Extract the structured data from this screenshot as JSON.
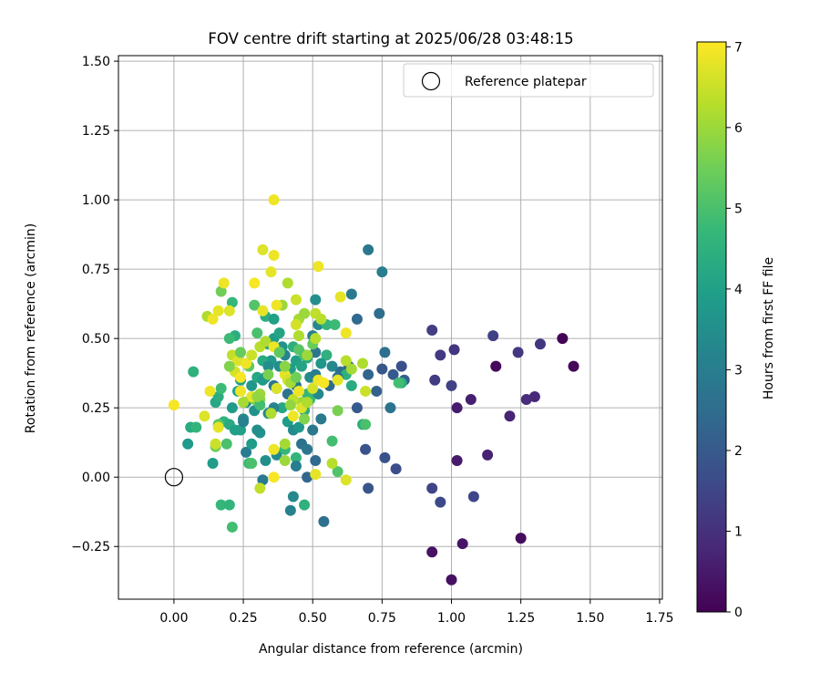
{
  "chart_data": {
    "type": "scatter",
    "title": "FOV centre drift starting at 2025/06/28 03:48:15",
    "xlabel": "Angular distance from reference (arcmin)",
    "ylabel": "Rotation from reference (arcmin)",
    "xlim": [
      -0.2,
      1.76
    ],
    "ylim": [
      -0.44,
      1.52
    ],
    "xticks": [
      "0.00",
      "0.25",
      "0.50",
      "0.75",
      "1.00",
      "1.25",
      "1.50",
      "1.75"
    ],
    "xtick_values": [
      0,
      0.25,
      0.5,
      0.75,
      1.0,
      1.25,
      1.5,
      1.75
    ],
    "yticks": [
      "−0.25",
      "0.00",
      "0.25",
      "0.50",
      "0.75",
      "1.00",
      "1.25",
      "1.50"
    ],
    "ytick_values": [
      -0.25,
      0,
      0.25,
      0.5,
      0.75,
      1.0,
      1.25,
      1.5
    ],
    "grid": true,
    "legend": {
      "position": "upper right",
      "entries": [
        {
          "label": "Reference platepar",
          "marker": "open-circle",
          "color": "#000000"
        }
      ]
    },
    "reference_point": {
      "x": 0.0,
      "y": 0.0
    },
    "colorbar": {
      "label": "Hours from first FF file",
      "min": 0,
      "max": 7.06,
      "ticks": [
        "0",
        "1",
        "2",
        "3",
        "4",
        "5",
        "6",
        "7"
      ],
      "tick_values": [
        0,
        1,
        2,
        3,
        4,
        5,
        6,
        7
      ],
      "colormap": "viridis"
    },
    "colormap_stops": [
      "#440154",
      "#482878",
      "#3e4989",
      "#31688e",
      "#26828e",
      "#1f9e89",
      "#35b779",
      "#6ece58",
      "#b5de2b",
      "#fde725"
    ],
    "points": [
      {
        "x": 1.4,
        "y": 0.5,
        "t": 0.05
      },
      {
        "x": 1.44,
        "y": 0.4,
        "t": 0.1
      },
      {
        "x": 1.25,
        "y": -0.22,
        "t": 0.2
      },
      {
        "x": 1.16,
        "y": 0.4,
        "t": 0.15
      },
      {
        "x": 1.0,
        "y": -0.37,
        "t": 0.3
      },
      {
        "x": 0.93,
        "y": -0.27,
        "t": 0.35
      },
      {
        "x": 1.04,
        "y": -0.24,
        "t": 0.4
      },
      {
        "x": 1.02,
        "y": 0.06,
        "t": 0.5
      },
      {
        "x": 1.02,
        "y": 0.25,
        "t": 0.55
      },
      {
        "x": 1.07,
        "y": 0.28,
        "t": 0.6
      },
      {
        "x": 1.13,
        "y": 0.08,
        "t": 0.65
      },
      {
        "x": 1.21,
        "y": 0.22,
        "t": 0.7
      },
      {
        "x": 1.3,
        "y": 0.29,
        "t": 0.8
      },
      {
        "x": 1.27,
        "y": 0.28,
        "t": 0.9
      },
      {
        "x": 1.01,
        "y": 0.46,
        "t": 1.1
      },
      {
        "x": 0.96,
        "y": 0.44,
        "t": 1.2
      },
      {
        "x": 0.93,
        "y": 0.53,
        "t": 1.3
      },
      {
        "x": 0.94,
        "y": 0.35,
        "t": 1.25
      },
      {
        "x": 1.0,
        "y": 0.33,
        "t": 1.4
      },
      {
        "x": 1.15,
        "y": 0.51,
        "t": 1.35
      },
      {
        "x": 1.24,
        "y": 0.45,
        "t": 1.2
      },
      {
        "x": 1.32,
        "y": 0.48,
        "t": 1.1
      },
      {
        "x": 1.08,
        "y": -0.07,
        "t": 1.5
      },
      {
        "x": 0.93,
        "y": -0.04,
        "t": 1.45
      },
      {
        "x": 0.96,
        "y": -0.09,
        "t": 1.6
      },
      {
        "x": 0.8,
        "y": 0.03,
        "t": 1.7
      },
      {
        "x": 0.76,
        "y": 0.07,
        "t": 1.8
      },
      {
        "x": 0.69,
        "y": 0.1,
        "t": 1.85
      },
      {
        "x": 0.7,
        "y": -0.04,
        "t": 1.9
      },
      {
        "x": 0.75,
        "y": 0.39,
        "t": 1.9
      },
      {
        "x": 0.79,
        "y": 0.37,
        "t": 2.0
      },
      {
        "x": 0.82,
        "y": 0.4,
        "t": 1.75
      },
      {
        "x": 0.83,
        "y": 0.35,
        "t": 2.1
      },
      {
        "x": 0.73,
        "y": 0.31,
        "t": 2.2
      },
      {
        "x": 0.7,
        "y": 0.37,
        "t": 2.3
      },
      {
        "x": 0.66,
        "y": 0.57,
        "t": 2.4
      },
      {
        "x": 0.74,
        "y": 0.59,
        "t": 2.5
      },
      {
        "x": 0.76,
        "y": 0.45,
        "t": 2.6
      },
      {
        "x": 0.78,
        "y": 0.25,
        "t": 2.7
      },
      {
        "x": 0.7,
        "y": 0.82,
        "t": 2.8
      },
      {
        "x": 0.75,
        "y": 0.74,
        "t": 3.0
      },
      {
        "x": 0.64,
        "y": 0.66,
        "t": 2.9
      },
      {
        "x": 0.66,
        "y": 0.25,
        "t": 2.0
      },
      {
        "x": 0.63,
        "y": 0.4,
        "t": 2.2
      },
      {
        "x": 0.6,
        "y": 0.38,
        "t": 2.5
      },
      {
        "x": 0.54,
        "y": -0.16,
        "t": 2.6
      },
      {
        "x": 0.51,
        "y": 0.06,
        "t": 2.4
      },
      {
        "x": 0.48,
        "y": 0.0,
        "t": 2.3
      },
      {
        "x": 0.46,
        "y": 0.12,
        "t": 2.7
      },
      {
        "x": 0.5,
        "y": 0.17,
        "t": 2.8
      },
      {
        "x": 0.53,
        "y": 0.21,
        "t": 2.9
      },
      {
        "x": 0.42,
        "y": -0.12,
        "t": 3.1
      },
      {
        "x": 0.43,
        "y": -0.07,
        "t": 3.3
      },
      {
        "x": 0.4,
        "y": 0.1,
        "t": 3.2
      },
      {
        "x": 0.37,
        "y": 0.08,
        "t": 3.4
      },
      {
        "x": 0.33,
        "y": 0.06,
        "t": 3.5
      },
      {
        "x": 0.31,
        "y": 0.16,
        "t": 3.6
      },
      {
        "x": 0.26,
        "y": 0.09,
        "t": 3.0
      },
      {
        "x": 0.25,
        "y": 0.21,
        "t": 3.3
      },
      {
        "x": 0.29,
        "y": 0.24,
        "t": 3.6
      },
      {
        "x": 0.33,
        "y": 0.36,
        "t": 3.7
      },
      {
        "x": 0.35,
        "y": 0.42,
        "t": 3.8
      },
      {
        "x": 0.38,
        "y": 0.4,
        "t": 3.5
      },
      {
        "x": 0.4,
        "y": 0.44,
        "t": 3.2
      },
      {
        "x": 0.42,
        "y": 0.39,
        "t": 3.9
      },
      {
        "x": 0.44,
        "y": 0.42,
        "t": 4.0
      },
      {
        "x": 0.46,
        "y": 0.4,
        "t": 4.1
      },
      {
        "x": 0.48,
        "y": 0.43,
        "t": 4.2
      },
      {
        "x": 0.49,
        "y": 0.36,
        "t": 3.4
      },
      {
        "x": 0.51,
        "y": 0.37,
        "t": 3.0
      },
      {
        "x": 0.51,
        "y": 0.45,
        "t": 2.8
      },
      {
        "x": 0.5,
        "y": 0.51,
        "t": 3.1
      },
      {
        "x": 0.52,
        "y": 0.55,
        "t": 3.3
      },
      {
        "x": 0.51,
        "y": 0.64,
        "t": 3.5
      },
      {
        "x": 0.55,
        "y": 0.55,
        "t": 4.6
      },
      {
        "x": 0.58,
        "y": 0.55,
        "t": 4.8
      },
      {
        "x": 0.55,
        "y": 0.44,
        "t": 4.5
      },
      {
        "x": 0.53,
        "y": 0.41,
        "t": 3.7
      },
      {
        "x": 0.57,
        "y": 0.13,
        "t": 4.9
      },
      {
        "x": 0.59,
        "y": 0.02,
        "t": 5.1
      },
      {
        "x": 0.62,
        "y": 0.37,
        "t": 4.5
      },
      {
        "x": 0.64,
        "y": 0.33,
        "t": 4.3
      },
      {
        "x": 0.68,
        "y": 0.19,
        "t": 4.4
      },
      {
        "x": 0.82,
        "y": 0.34,
        "t": 4.4
      },
      {
        "x": 0.47,
        "y": -0.1,
        "t": 4.5
      },
      {
        "x": 0.44,
        "y": 0.07,
        "t": 4.6
      },
      {
        "x": 0.4,
        "y": 0.1,
        "t": 4.7
      },
      {
        "x": 0.27,
        "y": 0.05,
        "t": 4.8
      },
      {
        "x": 0.28,
        "y": 0.05,
        "t": 5.0
      },
      {
        "x": 0.17,
        "y": -0.1,
        "t": 4.7
      },
      {
        "x": 0.2,
        "y": -0.1,
        "t": 4.6
      },
      {
        "x": 0.21,
        "y": -0.18,
        "t": 4.9
      },
      {
        "x": 0.14,
        "y": 0.05,
        "t": 3.9
      },
      {
        "x": 0.05,
        "y": 0.12,
        "t": 3.8
      },
      {
        "x": 0.06,
        "y": 0.18,
        "t": 4.3
      },
      {
        "x": 0.08,
        "y": 0.18,
        "t": 4.6
      },
      {
        "x": 0.07,
        "y": 0.38,
        "t": 4.5
      },
      {
        "x": 0.15,
        "y": 0.27,
        "t": 4.2
      },
      {
        "x": 0.16,
        "y": 0.29,
        "t": 4.4
      },
      {
        "x": 0.17,
        "y": 0.32,
        "t": 4.8
      },
      {
        "x": 0.18,
        "y": 0.2,
        "t": 4.6
      },
      {
        "x": 0.19,
        "y": 0.12,
        "t": 5.0
      },
      {
        "x": 0.16,
        "y": 0.19,
        "t": 5.2
      },
      {
        "x": 0.15,
        "y": 0.11,
        "t": 5.5
      },
      {
        "x": 0.2,
        "y": 0.19,
        "t": 4.3
      },
      {
        "x": 0.22,
        "y": 0.17,
        "t": 4.0
      },
      {
        "x": 0.21,
        "y": 0.25,
        "t": 3.8
      },
      {
        "x": 0.23,
        "y": 0.31,
        "t": 4.1
      },
      {
        "x": 0.24,
        "y": 0.35,
        "t": 4.0
      },
      {
        "x": 0.26,
        "y": 0.27,
        "t": 3.6
      },
      {
        "x": 0.28,
        "y": 0.33,
        "t": 3.7
      },
      {
        "x": 0.3,
        "y": 0.36,
        "t": 4.2
      },
      {
        "x": 0.32,
        "y": 0.42,
        "t": 4.3
      },
      {
        "x": 0.34,
        "y": 0.48,
        "t": 4.1
      },
      {
        "x": 0.36,
        "y": 0.5,
        "t": 3.9
      },
      {
        "x": 0.39,
        "y": 0.47,
        "t": 3.6
      },
      {
        "x": 0.43,
        "y": 0.47,
        "t": 4.4
      },
      {
        "x": 0.45,
        "y": 0.46,
        "t": 5.2
      },
      {
        "x": 0.47,
        "y": 0.44,
        "t": 5.0
      },
      {
        "x": 0.5,
        "y": 0.48,
        "t": 5.4
      },
      {
        "x": 0.33,
        "y": 0.58,
        "t": 4.4
      },
      {
        "x": 0.29,
        "y": 0.62,
        "t": 5.1
      },
      {
        "x": 0.21,
        "y": 0.63,
        "t": 4.7
      },
      {
        "x": 0.17,
        "y": 0.67,
        "t": 5.5
      },
      {
        "x": 0.22,
        "y": 0.51,
        "t": 4.4
      },
      {
        "x": 0.2,
        "y": 0.5,
        "t": 4.8
      },
      {
        "x": 0.36,
        "y": 0.57,
        "t": 4.0
      },
      {
        "x": 0.38,
        "y": 0.52,
        "t": 4.1
      },
      {
        "x": 0.3,
        "y": 0.52,
        "t": 5.0
      },
      {
        "x": 0.27,
        "y": 0.4,
        "t": 5.3
      },
      {
        "x": 0.29,
        "y": 0.28,
        "t": 5.6
      },
      {
        "x": 0.31,
        "y": 0.28,
        "t": 5.8
      },
      {
        "x": 0.31,
        "y": 0.26,
        "t": 4.9
      },
      {
        "x": 0.32,
        "y": 0.35,
        "t": 3.8
      },
      {
        "x": 0.34,
        "y": 0.4,
        "t": 3.5
      },
      {
        "x": 0.37,
        "y": 0.32,
        "t": 4.6
      },
      {
        "x": 0.39,
        "y": 0.25,
        "t": 4.2
      },
      {
        "x": 0.41,
        "y": 0.2,
        "t": 3.9
      },
      {
        "x": 0.43,
        "y": 0.17,
        "t": 3.4
      },
      {
        "x": 0.45,
        "y": 0.18,
        "t": 3.7
      },
      {
        "x": 0.47,
        "y": 0.24,
        "t": 4.4
      },
      {
        "x": 0.49,
        "y": 0.28,
        "t": 4.8
      },
      {
        "x": 0.52,
        "y": 0.3,
        "t": 3.3
      },
      {
        "x": 0.48,
        "y": 0.3,
        "t": 4.7
      },
      {
        "x": 0.36,
        "y": 0.25,
        "t": 3.2
      },
      {
        "x": 0.34,
        "y": 0.23,
        "t": 3.3
      },
      {
        "x": 0.3,
        "y": 0.17,
        "t": 3.5
      },
      {
        "x": 0.28,
        "y": 0.12,
        "t": 3.9
      },
      {
        "x": 0.24,
        "y": 0.17,
        "t": 4.0
      },
      {
        "x": 0.25,
        "y": 0.2,
        "t": 3.1
      },
      {
        "x": 0.56,
        "y": 0.33,
        "t": 2.4
      },
      {
        "x": 0.59,
        "y": 0.36,
        "t": 2.6
      },
      {
        "x": 0.57,
        "y": 0.4,
        "t": 3.3
      },
      {
        "x": 0.44,
        "y": 0.33,
        "t": 2.9
      },
      {
        "x": 0.41,
        "y": 0.3,
        "t": 2.7
      },
      {
        "x": 0.36,
        "y": 0.33,
        "t": 2.8
      },
      {
        "x": 0.48,
        "y": 0.1,
        "t": 2.8
      },
      {
        "x": 0.44,
        "y": 0.04,
        "t": 3.0
      },
      {
        "x": 0.32,
        "y": -0.01,
        "t": 2.9
      },
      {
        "x": 0.46,
        "y": 0.27,
        "t": 6.0
      },
      {
        "x": 0.45,
        "y": 0.57,
        "t": 6.1
      },
      {
        "x": 0.47,
        "y": 0.59,
        "t": 6.0
      },
      {
        "x": 0.51,
        "y": 0.59,
        "t": 6.4
      },
      {
        "x": 0.53,
        "y": 0.57,
        "t": 6.3
      },
      {
        "x": 0.6,
        "y": 0.65,
        "t": 6.8
      },
      {
        "x": 0.44,
        "y": 0.64,
        "t": 6.5
      },
      {
        "x": 0.41,
        "y": 0.7,
        "t": 6.2
      },
      {
        "x": 0.39,
        "y": 0.62,
        "t": 6.0
      },
      {
        "x": 0.37,
        "y": 0.62,
        "t": 6.9
      },
      {
        "x": 0.36,
        "y": 0.8,
        "t": 6.9
      },
      {
        "x": 0.32,
        "y": 0.82,
        "t": 6.7
      },
      {
        "x": 0.35,
        "y": 0.74,
        "t": 6.8
      },
      {
        "x": 0.36,
        "y": 1.0,
        "t": 6.9
      },
      {
        "x": 0.29,
        "y": 0.7,
        "t": 7.0
      },
      {
        "x": 0.18,
        "y": 0.7,
        "t": 6.9
      },
      {
        "x": 0.16,
        "y": 0.6,
        "t": 6.8
      },
      {
        "x": 0.2,
        "y": 0.6,
        "t": 6.7
      },
      {
        "x": 0.12,
        "y": 0.58,
        "t": 6.2
      },
      {
        "x": 0.14,
        "y": 0.57,
        "t": 6.9
      },
      {
        "x": 0.32,
        "y": 0.6,
        "t": 6.8
      },
      {
        "x": 0.52,
        "y": 0.76,
        "t": 6.9
      },
      {
        "x": 0.21,
        "y": 0.44,
        "t": 6.4
      },
      {
        "x": 0.23,
        "y": 0.42,
        "t": 6.7
      },
      {
        "x": 0.22,
        "y": 0.38,
        "t": 6.6
      },
      {
        "x": 0.24,
        "y": 0.36,
        "t": 7.0
      },
      {
        "x": 0.26,
        "y": 0.41,
        "t": 6.9
      },
      {
        "x": 0.28,
        "y": 0.44,
        "t": 6.5
      },
      {
        "x": 0.31,
        "y": 0.47,
        "t": 6.3
      },
      {
        "x": 0.33,
        "y": 0.49,
        "t": 6.2
      },
      {
        "x": 0.36,
        "y": 0.47,
        "t": 6.9
      },
      {
        "x": 0.38,
        "y": 0.45,
        "t": 7.0
      },
      {
        "x": 0.4,
        "y": 0.37,
        "t": 6.8
      },
      {
        "x": 0.41,
        "y": 0.35,
        "t": 6.6
      },
      {
        "x": 0.42,
        "y": 0.34,
        "t": 6.1
      },
      {
        "x": 0.43,
        "y": 0.28,
        "t": 6.4
      },
      {
        "x": 0.45,
        "y": 0.31,
        "t": 6.9
      },
      {
        "x": 0.46,
        "y": 0.25,
        "t": 6.7
      },
      {
        "x": 0.48,
        "y": 0.27,
        "t": 6.2
      },
      {
        "x": 0.5,
        "y": 0.32,
        "t": 6.6
      },
      {
        "x": 0.52,
        "y": 0.35,
        "t": 6.9
      },
      {
        "x": 0.54,
        "y": 0.34,
        "t": 7.0
      },
      {
        "x": 0.59,
        "y": 0.35,
        "t": 6.8
      },
      {
        "x": 0.62,
        "y": 0.42,
        "t": 6.3
      },
      {
        "x": 0.64,
        "y": 0.39,
        "t": 6.1
      },
      {
        "x": 0.68,
        "y": 0.41,
        "t": 6.2
      },
      {
        "x": 0.62,
        "y": 0.52,
        "t": 6.9
      },
      {
        "x": 0.69,
        "y": 0.31,
        "t": 6.5
      },
      {
        "x": 0.0,
        "y": 0.26,
        "t": 7.0
      },
      {
        "x": 0.13,
        "y": 0.31,
        "t": 6.9
      },
      {
        "x": 0.11,
        "y": 0.22,
        "t": 6.7
      },
      {
        "x": 0.16,
        "y": 0.18,
        "t": 6.8
      },
      {
        "x": 0.15,
        "y": 0.12,
        "t": 6.5
      },
      {
        "x": 0.31,
        "y": -0.04,
        "t": 6.4
      },
      {
        "x": 0.36,
        "y": 0.0,
        "t": 7.0
      },
      {
        "x": 0.36,
        "y": 0.1,
        "t": 6.9
      },
      {
        "x": 0.4,
        "y": 0.12,
        "t": 6.1
      },
      {
        "x": 0.4,
        "y": 0.06,
        "t": 6.0
      },
      {
        "x": 0.51,
        "y": 0.01,
        "t": 6.8
      },
      {
        "x": 0.62,
        "y": -0.01,
        "t": 6.7
      },
      {
        "x": 0.57,
        "y": 0.05,
        "t": 6.3
      },
      {
        "x": 0.43,
        "y": 0.22,
        "t": 6.9
      },
      {
        "x": 0.35,
        "y": 0.23,
        "t": 6.2
      },
      {
        "x": 0.37,
        "y": 0.32,
        "t": 6.7
      },
      {
        "x": 0.31,
        "y": 0.3,
        "t": 6.0
      },
      {
        "x": 0.28,
        "y": 0.29,
        "t": 6.8
      },
      {
        "x": 0.24,
        "y": 0.31,
        "t": 6.9
      },
      {
        "x": 0.3,
        "y": 0.29,
        "t": 5.9
      },
      {
        "x": 0.25,
        "y": 0.27,
        "t": 6.1
      },
      {
        "x": 0.45,
        "y": 0.51,
        "t": 6.2
      },
      {
        "x": 0.48,
        "y": 0.44,
        "t": 6.0
      },
      {
        "x": 0.51,
        "y": 0.5,
        "t": 6.3
      },
      {
        "x": 0.44,
        "y": 0.55,
        "t": 6.6
      },
      {
        "x": 0.4,
        "y": 0.4,
        "t": 5.8
      },
      {
        "x": 0.34,
        "y": 0.37,
        "t": 5.6
      },
      {
        "x": 0.42,
        "y": 0.26,
        "t": 5.9
      },
      {
        "x": 0.47,
        "y": 0.21,
        "t": 5.7
      },
      {
        "x": 0.44,
        "y": 0.36,
        "t": 5.5
      },
      {
        "x": 0.38,
        "y": 0.45,
        "t": 5.3
      },
      {
        "x": 0.24,
        "y": 0.45,
        "t": 5.4
      },
      {
        "x": 0.2,
        "y": 0.4,
        "t": 5.7
      },
      {
        "x": 0.59,
        "y": 0.24,
        "t": 5.6
      },
      {
        "x": 0.69,
        "y": 0.19,
        "t": 5.0
      },
      {
        "x": 0.81,
        "y": 0.34,
        "t": 4.9
      }
    ]
  }
}
